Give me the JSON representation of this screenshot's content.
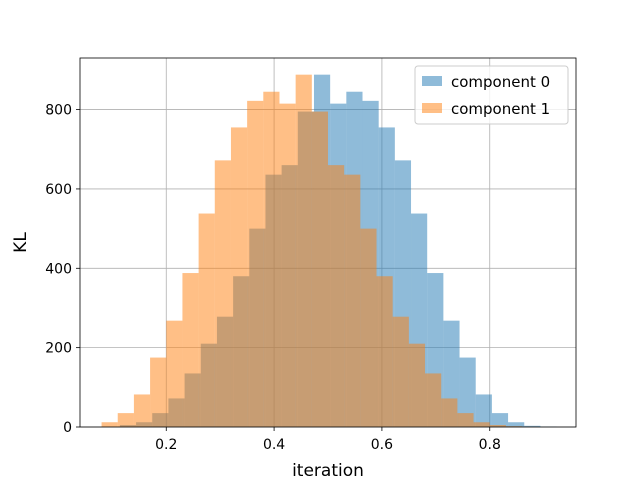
{
  "chart_data": {
    "type": "bar",
    "xlabel": "iteration",
    "ylabel": "KL",
    "xlim": [
      0.04,
      0.96
    ],
    "ylim": [
      0,
      930
    ],
    "xticks": [
      0.2,
      0.4,
      0.6,
      0.8
    ],
    "xtick_labels": [
      "0.2",
      "0.4",
      "0.6",
      "0.8"
    ],
    "yticks": [
      0,
      200,
      400,
      600,
      800
    ],
    "ytick_labels": [
      "0",
      "200",
      "400",
      "600",
      "800"
    ],
    "grid": true,
    "legend_position": "top-right",
    "overlap_color": "#c79b76",
    "series": [
      {
        "name": "component 0",
        "color": "#1f77b4",
        "alpha": 0.5,
        "bin_width": 0.03,
        "bin_starts": [
          0.114,
          0.144,
          0.174,
          0.204,
          0.234,
          0.264,
          0.294,
          0.324,
          0.354,
          0.384,
          0.414,
          0.444,
          0.474,
          0.504,
          0.534,
          0.564,
          0.594,
          0.624,
          0.654,
          0.684,
          0.714,
          0.744,
          0.774,
          0.804,
          0.834,
          0.864,
          0.894
        ],
        "values": [
          5,
          12,
          35,
          72,
          135,
          210,
          278,
          380,
          500,
          636,
          660,
          795,
          888,
          815,
          845,
          822,
          755,
          672,
          538,
          388,
          268,
          175,
          82,
          35,
          12,
          3,
          1
        ]
      },
      {
        "name": "component 1",
        "color": "#ff7f0e",
        "alpha": 0.5,
        "bin_width": 0.03,
        "bin_starts": [
          0.08,
          0.11,
          0.14,
          0.17,
          0.2,
          0.23,
          0.26,
          0.29,
          0.32,
          0.35,
          0.38,
          0.41,
          0.44,
          0.47,
          0.5,
          0.53,
          0.56,
          0.59,
          0.62,
          0.65,
          0.68,
          0.71,
          0.74,
          0.77,
          0.8,
          0.83,
          0.86
        ],
        "values": [
          12,
          35,
          82,
          175,
          268,
          388,
          538,
          672,
          755,
          822,
          845,
          815,
          888,
          795,
          660,
          636,
          500,
          380,
          278,
          210,
          135,
          72,
          35,
          12,
          5,
          2,
          1
        ]
      }
    ]
  }
}
